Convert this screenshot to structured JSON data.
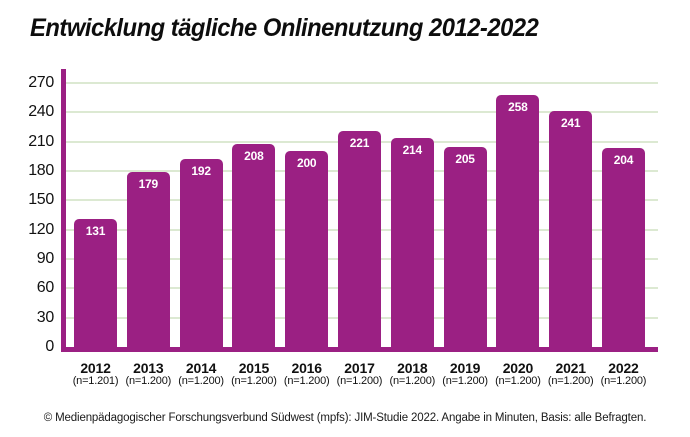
{
  "title": "Entwicklung tägliche Onlinenutzung 2012-2022",
  "source_note": "© Medienpädagogischer Forschungsverbund Südwest (mpfs): JIM-Studie 2022. Angabe in Minuten, Basis: alle Befragten.",
  "chart_data": {
    "type": "bar",
    "title": "Entwicklung tägliche Onlinenutzung 2012-2022",
    "categories": [
      "2012",
      "2013",
      "2014",
      "2015",
      "2016",
      "2017",
      "2018",
      "2019",
      "2020",
      "2021",
      "2022"
    ],
    "category_sublabels": [
      "(n=1.201)",
      "(n=1.200)",
      "(n=1.200)",
      "(n=1.200)",
      "(n=1.200)",
      "(n=1.200)",
      "(n=1.200)",
      "(n=1.200)",
      "(n=1.200)",
      "(n=1.200)",
      "(n=1.200)"
    ],
    "values": [
      131,
      179,
      192,
      208,
      200,
      221,
      214,
      205,
      258,
      241,
      204
    ],
    "value_labels_shown": true,
    "xlabel": "",
    "ylabel": "",
    "ylim": [
      0,
      270
    ],
    "yticks": [
      0,
      30,
      60,
      90,
      120,
      150,
      180,
      210,
      240,
      270
    ],
    "grid": true,
    "legend": false,
    "colors": {
      "bar": "#9B2083",
      "axis": "#9B2083",
      "gridline": "#DCE9D2",
      "value_label": "#FFFFFF",
      "label_text": "#111111"
    }
  }
}
